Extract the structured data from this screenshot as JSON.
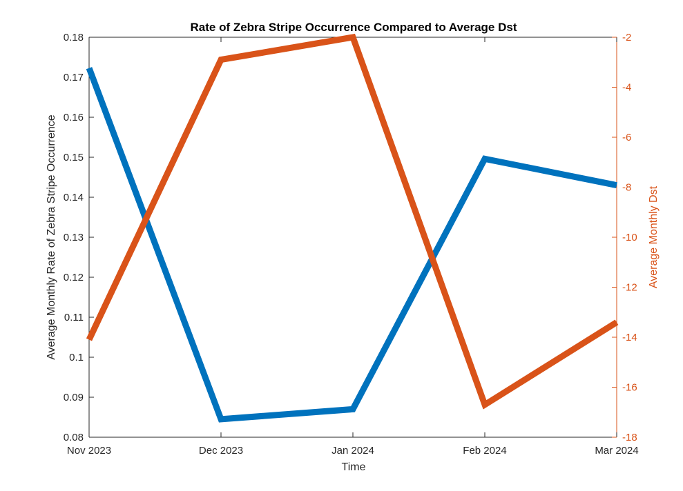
{
  "chart_data": {
    "type": "line",
    "title": "Rate of Zebra Stripe Occurrence Compared to Average Dst",
    "xlabel": "Time",
    "x": [
      "Nov 2023",
      "Dec 2023",
      "Jan 2024",
      "Feb 2024",
      "Mar 2024"
    ],
    "left_axis": {
      "label": "Average Monthly Rate of Zebra Stripe Occurrence",
      "ylim": [
        0.08,
        0.18
      ],
      "ticks": [
        "0.08",
        "0.09",
        "0.1",
        "0.11",
        "0.12",
        "0.13",
        "0.14",
        "0.15",
        "0.16",
        "0.17",
        "0.18"
      ],
      "color": "#262626"
    },
    "right_axis": {
      "label": "Average Monthly Dst",
      "ylim": [
        -18,
        -2
      ],
      "ticks": [
        "-18",
        "-16",
        "-14",
        "-12",
        "-10",
        "-8",
        "-6",
        "-4",
        "-2"
      ],
      "color": "#D95319"
    },
    "series": [
      {
        "axis": "left",
        "color": "#0072BD",
        "values": [
          0.1723,
          0.0845,
          0.087,
          0.1496,
          0.143
        ]
      },
      {
        "axis": "right",
        "color": "#D95319",
        "values": [
          -14.1,
          -2.9,
          -2.0,
          -16.7,
          -13.4
        ]
      }
    ],
    "grid": false,
    "legend": "none"
  }
}
